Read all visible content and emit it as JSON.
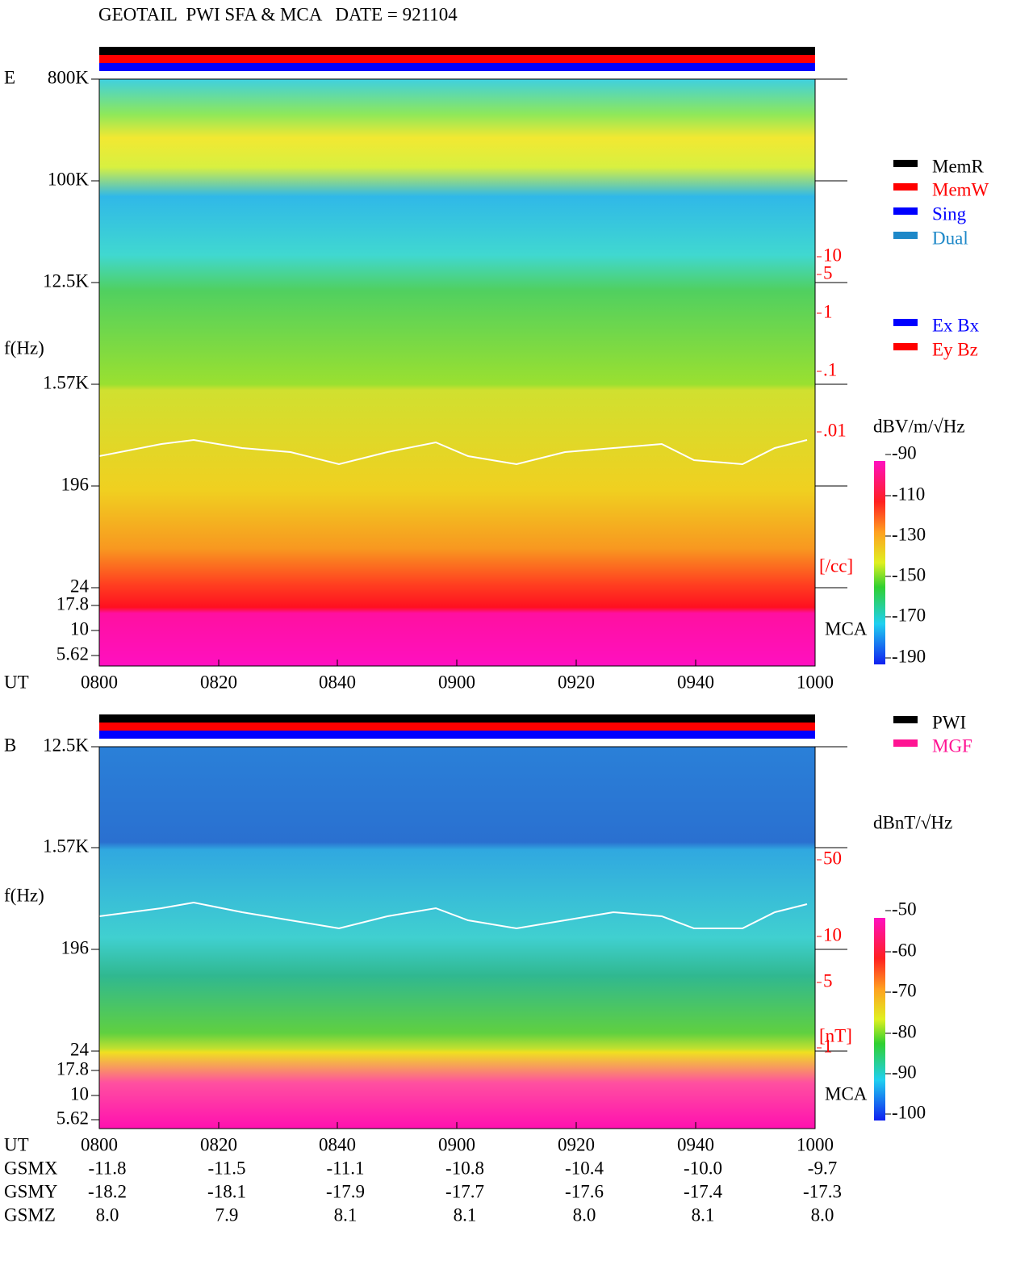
{
  "header": {
    "title": "GEOTAIL  PWI SFA & MCA   DATE = 921104"
  },
  "panels": [
    {
      "label": "E",
      "y_axis_label": "f(Hz)",
      "freq_ticks": [
        "800K",
        "100K",
        "12.5K",
        "1.57K",
        "196",
        "24",
        "17.8",
        "10",
        "5.62"
      ],
      "density_ticks": [
        "10",
        "5",
        "1",
        ".1",
        ".01"
      ],
      "density_unit": "[/cc]",
      "mca_label": "MCA",
      "time_label": "UT",
      "time_ticks": [
        "0800",
        "0820",
        "0840",
        "0900",
        "0920",
        "0940",
        "1000"
      ],
      "colorbar": {
        "label": "dBV/m/√Hz",
        "ticks": [
          "-90",
          "-110",
          "-130",
          "-150",
          "-170",
          "-190"
        ]
      }
    },
    {
      "label": "B",
      "y_axis_label": "f(Hz)",
      "freq_ticks": [
        "12.5K",
        "1.57K",
        "196",
        "24",
        "17.8",
        "10",
        "5.62"
      ],
      "density_ticks": [
        "50",
        "10",
        "5",
        "1"
      ],
      "density_unit": "[nT]",
      "mca_label": "MCA",
      "time_label": "UT",
      "time_ticks": [
        "0800",
        "0820",
        "0840",
        "0900",
        "0920",
        "0940",
        "1000"
      ],
      "colorbar": {
        "label": "dBnT/√Hz",
        "ticks": [
          "-50",
          "-60",
          "-70",
          "-80",
          "-90",
          "-100"
        ]
      }
    }
  ],
  "legends": {
    "mode": [
      {
        "label": "MemR",
        "color": "#000000"
      },
      {
        "label": "MemW",
        "color": "#ff0000"
      },
      {
        "label": "Sing",
        "color": "#0000ff"
      },
      {
        "label": "Dual",
        "color": "#1e88c8"
      }
    ],
    "sensor": [
      {
        "label": "Ex Bx",
        "color": "#0000ff"
      },
      {
        "label": "Ey Bz",
        "color": "#ff0000"
      }
    ],
    "source": [
      {
        "label": "PWI",
        "color": "#000000"
      },
      {
        "label": "MGF",
        "color": "#ff1493"
      }
    ]
  },
  "orbit": {
    "rows": [
      {
        "label": "GSMX",
        "values": [
          "-11.8",
          "-11.5",
          "-11.1",
          "-10.8",
          "-10.4",
          "-10.0",
          "-9.7"
        ]
      },
      {
        "label": "GSMY",
        "values": [
          "-18.2",
          "-18.1",
          "-17.9",
          "-17.7",
          "-17.6",
          "-17.4",
          "-17.3"
        ]
      },
      {
        "label": "GSMZ",
        "values": [
          "8.0",
          "7.9",
          "8.1",
          "8.1",
          "8.0",
          "8.1",
          "8.0"
        ]
      }
    ]
  }
}
